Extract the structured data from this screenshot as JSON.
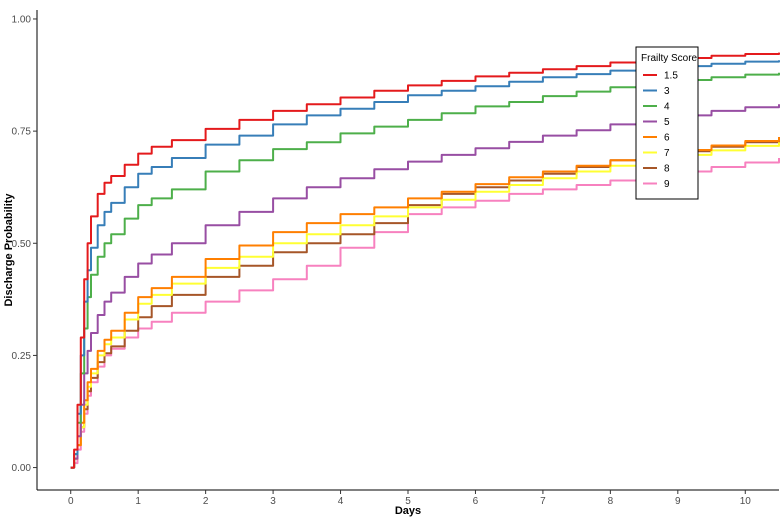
{
  "chart_data": {
    "type": "line",
    "title": "",
    "xlabel": "Days",
    "ylabel": "Discharge Probability",
    "xlim": [
      -0.5,
      10.5
    ],
    "ylim": [
      -0.05,
      1.02
    ],
    "x_ticks": [
      0,
      1,
      2,
      3,
      4,
      5,
      6,
      7,
      8,
      9,
      10
    ],
    "y_ticks": [
      0,
      0.25,
      0.5,
      0.75,
      1.0
    ],
    "y_tick_labels": [
      "0.00",
      "0.25",
      "0.50",
      "0.75",
      "1.00"
    ],
    "grid": false,
    "legend": {
      "title": "Frailty Score",
      "position": "right-top-inside"
    },
    "series": [
      {
        "name": "1.5",
        "color": "#E41A1C",
        "x": [
          0,
          0.05,
          0.1,
          0.15,
          0.2,
          0.25,
          0.3,
          0.4,
          0.5,
          0.6,
          0.8,
          1.0,
          1.2,
          1.5,
          2.0,
          2.5,
          3.0,
          3.5,
          4.0,
          4.5,
          5.0,
          5.5,
          6.0,
          6.5,
          7.0,
          7.5,
          8.0,
          8.5,
          9.0,
          9.5,
          10.0,
          10.5
        ],
        "y": [
          0,
          0.04,
          0.14,
          0.29,
          0.42,
          0.5,
          0.56,
          0.61,
          0.635,
          0.65,
          0.675,
          0.7,
          0.715,
          0.73,
          0.755,
          0.775,
          0.795,
          0.81,
          0.825,
          0.84,
          0.852,
          0.862,
          0.872,
          0.88,
          0.888,
          0.895,
          0.903,
          0.908,
          0.913,
          0.918,
          0.922,
          0.925
        ]
      },
      {
        "name": "3",
        "color": "#377EB8",
        "x": [
          0,
          0.05,
          0.1,
          0.15,
          0.2,
          0.25,
          0.3,
          0.4,
          0.5,
          0.6,
          0.8,
          1.0,
          1.2,
          1.5,
          2.0,
          2.5,
          3.0,
          3.5,
          4.0,
          4.5,
          5.0,
          5.5,
          6.0,
          6.5,
          7.0,
          7.5,
          8.0,
          8.5,
          9.0,
          9.5,
          10.0,
          10.5
        ],
        "y": [
          0,
          0.03,
          0.12,
          0.25,
          0.37,
          0.44,
          0.49,
          0.54,
          0.57,
          0.59,
          0.625,
          0.655,
          0.67,
          0.69,
          0.72,
          0.74,
          0.765,
          0.785,
          0.8,
          0.815,
          0.83,
          0.84,
          0.85,
          0.86,
          0.87,
          0.877,
          0.885,
          0.89,
          0.895,
          0.9,
          0.905,
          0.908
        ]
      },
      {
        "name": "4",
        "color": "#4DAF4A",
        "x": [
          0,
          0.05,
          0.1,
          0.15,
          0.2,
          0.25,
          0.3,
          0.4,
          0.5,
          0.6,
          0.8,
          1.0,
          1.2,
          1.5,
          2.0,
          2.5,
          3.0,
          3.5,
          4.0,
          4.5,
          5.0,
          5.5,
          6.0,
          6.5,
          7.0,
          7.5,
          8.0,
          8.5,
          9.0,
          9.5,
          10.0,
          10.5
        ],
        "y": [
          0,
          0.03,
          0.1,
          0.21,
          0.31,
          0.38,
          0.43,
          0.47,
          0.5,
          0.52,
          0.555,
          0.585,
          0.6,
          0.62,
          0.66,
          0.685,
          0.71,
          0.725,
          0.745,
          0.76,
          0.775,
          0.79,
          0.805,
          0.815,
          0.828,
          0.838,
          0.848,
          0.856,
          0.864,
          0.87,
          0.876,
          0.88
        ]
      },
      {
        "name": "5",
        "color": "#984EA3",
        "x": [
          0,
          0.05,
          0.1,
          0.15,
          0.2,
          0.25,
          0.3,
          0.4,
          0.5,
          0.6,
          0.8,
          1.0,
          1.2,
          1.5,
          2.0,
          2.5,
          3.0,
          3.5,
          4.0,
          4.5,
          5.0,
          5.5,
          6.0,
          6.5,
          7.0,
          7.5,
          8.0,
          8.5,
          9.0,
          9.5,
          10.0,
          10.5
        ],
        "y": [
          0,
          0.02,
          0.07,
          0.14,
          0.21,
          0.26,
          0.3,
          0.34,
          0.37,
          0.39,
          0.425,
          0.455,
          0.475,
          0.5,
          0.54,
          0.57,
          0.6,
          0.625,
          0.645,
          0.665,
          0.682,
          0.697,
          0.712,
          0.726,
          0.74,
          0.752,
          0.765,
          0.775,
          0.785,
          0.795,
          0.803,
          0.81
        ]
      },
      {
        "name": "6",
        "color": "#FF7F00",
        "x": [
          0,
          0.05,
          0.1,
          0.15,
          0.2,
          0.25,
          0.3,
          0.4,
          0.5,
          0.6,
          0.8,
          1.0,
          1.2,
          1.5,
          2.0,
          2.5,
          3.0,
          3.5,
          4.0,
          4.5,
          5.0,
          5.5,
          6.0,
          6.5,
          7.0,
          7.5,
          8.0,
          8.5,
          9.0,
          9.5,
          10.0,
          10.5
        ],
        "y": [
          0,
          0.02,
          0.05,
          0.1,
          0.15,
          0.19,
          0.22,
          0.26,
          0.285,
          0.305,
          0.345,
          0.38,
          0.4,
          0.425,
          0.465,
          0.495,
          0.525,
          0.545,
          0.565,
          0.58,
          0.6,
          0.615,
          0.632,
          0.647,
          0.66,
          0.673,
          0.685,
          0.697,
          0.708,
          0.718,
          0.728,
          0.737
        ]
      },
      {
        "name": "7",
        "color": "#FFFF33",
        "x": [
          0,
          0.05,
          0.1,
          0.15,
          0.2,
          0.25,
          0.3,
          0.4,
          0.5,
          0.6,
          0.8,
          1.0,
          1.2,
          1.5,
          2.0,
          2.5,
          3.0,
          3.5,
          4.0,
          4.5,
          5.0,
          5.5,
          6.0,
          6.5,
          7.0,
          7.5,
          8.0,
          8.5,
          9.0,
          9.5,
          10.0,
          10.5
        ],
        "y": [
          0,
          0.02,
          0.05,
          0.09,
          0.14,
          0.18,
          0.21,
          0.25,
          0.275,
          0.29,
          0.33,
          0.365,
          0.385,
          0.41,
          0.445,
          0.47,
          0.5,
          0.52,
          0.54,
          0.56,
          0.58,
          0.597,
          0.615,
          0.63,
          0.645,
          0.66,
          0.673,
          0.685,
          0.697,
          0.707,
          0.717,
          0.725
        ]
      },
      {
        "name": "8",
        "color": "#A65628",
        "x": [
          0,
          0.05,
          0.1,
          0.15,
          0.2,
          0.25,
          0.3,
          0.4,
          0.5,
          0.6,
          0.8,
          1.0,
          1.2,
          1.5,
          2.0,
          2.5,
          3.0,
          3.5,
          4.0,
          4.5,
          5.0,
          5.5,
          6.0,
          6.5,
          7.0,
          7.5,
          8.0,
          8.5,
          9.0,
          9.5,
          10.0,
          10.5
        ],
        "y": [
          0,
          0.02,
          0.05,
          0.09,
          0.13,
          0.17,
          0.2,
          0.235,
          0.255,
          0.27,
          0.305,
          0.335,
          0.36,
          0.385,
          0.425,
          0.45,
          0.48,
          0.5,
          0.52,
          0.545,
          0.585,
          0.61,
          0.625,
          0.64,
          0.655,
          0.67,
          0.685,
          0.695,
          0.705,
          0.715,
          0.725,
          0.73
        ]
      },
      {
        "name": "9",
        "color": "#F781BF",
        "x": [
          0,
          0.05,
          0.1,
          0.15,
          0.2,
          0.25,
          0.3,
          0.4,
          0.5,
          0.6,
          0.8,
          1.0,
          1.2,
          1.5,
          2.0,
          2.5,
          3.0,
          3.5,
          4.0,
          4.5,
          5.0,
          5.5,
          6.0,
          6.5,
          7.0,
          7.5,
          8.0,
          8.5,
          9.0,
          9.5,
          10.0,
          10.5
        ],
        "y": [
          0,
          0.01,
          0.04,
          0.08,
          0.12,
          0.16,
          0.19,
          0.225,
          0.25,
          0.265,
          0.29,
          0.31,
          0.325,
          0.345,
          0.37,
          0.395,
          0.42,
          0.45,
          0.49,
          0.525,
          0.565,
          0.58,
          0.595,
          0.61,
          0.62,
          0.63,
          0.64,
          0.65,
          0.66,
          0.67,
          0.68,
          0.69
        ]
      }
    ]
  }
}
